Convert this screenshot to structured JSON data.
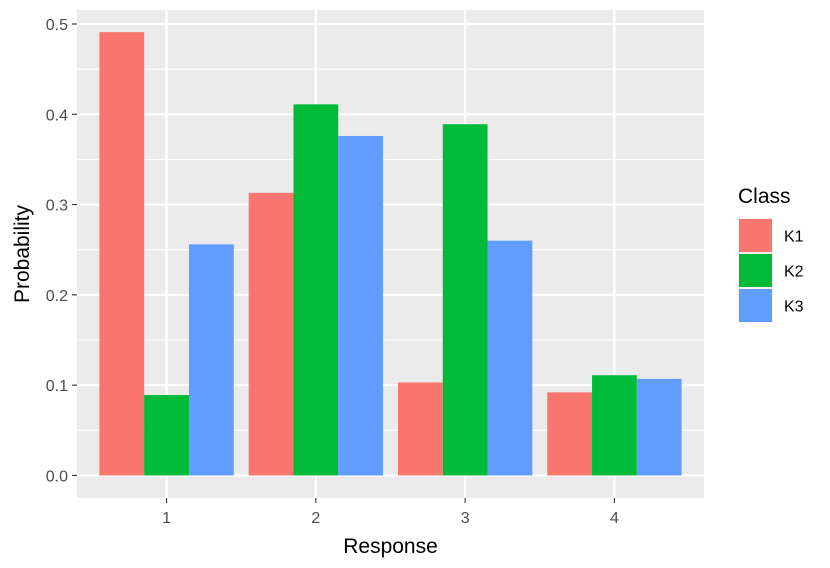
{
  "chart_data": {
    "type": "bar",
    "categories": [
      "1",
      "2",
      "3",
      "4"
    ],
    "series": [
      {
        "name": "K1",
        "color": "#F8766D",
        "values": [
          0.491,
          0.313,
          0.103,
          0.092
        ]
      },
      {
        "name": "K2",
        "color": "#00BA38",
        "values": [
          0.089,
          0.411,
          0.389,
          0.111
        ]
      },
      {
        "name": "K3",
        "color": "#619CFF",
        "values": [
          0.256,
          0.376,
          0.26,
          0.107
        ]
      }
    ],
    "xlabel": "Response",
    "ylabel": "Probability",
    "ylim": [
      -0.025,
      0.5155
    ],
    "yticks": [
      0.0,
      0.1,
      0.2,
      0.3,
      0.4,
      0.5
    ],
    "ytick_labels": [
      "0.0",
      "0.1",
      "0.2",
      "0.3",
      "0.4",
      "0.5"
    ],
    "legend_title": "Class",
    "legend_position": "right",
    "grid": true,
    "panel_background": "#EBEBEB"
  }
}
